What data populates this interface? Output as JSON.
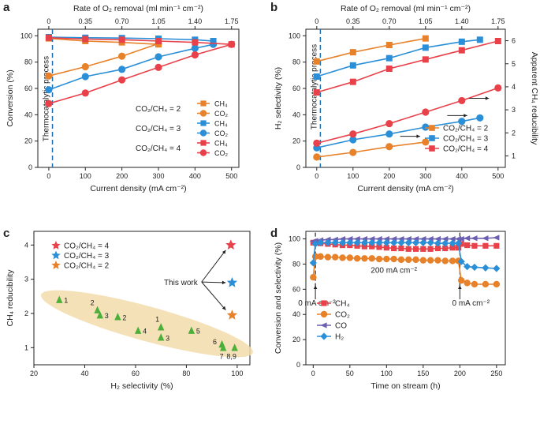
{
  "chart_data": [
    {
      "panel": "a",
      "type": "line",
      "title": "",
      "xlabel": "Current density (mA cm⁻²)",
      "ylabel": "Conversion (%)",
      "top_xlabel": "Rate of O₂ removal (ml min⁻¹ cm⁻²)",
      "x_ticks": [
        "0",
        "100",
        "200",
        "300",
        "400",
        "500"
      ],
      "top_ticks": [
        "0",
        "0.35",
        "0.70",
        "1.05",
        "1.40",
        "1.75"
      ],
      "y_ticks": [
        "0",
        "20",
        "40",
        "60",
        "80",
        "100"
      ],
      "xlim": [
        -30,
        520
      ],
      "ylim": [
        0,
        105
      ],
      "annotation": "Thermocatalytic process",
      "legend_groups": [
        "CO₂/CH₄ = 2",
        "CO₂/CH₄ = 3",
        "CO₂/CH₄ = 4"
      ],
      "series": [
        {
          "name": "CH₄",
          "group": "CO₂/CH₄ = 2",
          "color": "#e8822a",
          "marker": "square",
          "x": [
            0,
            100,
            200,
            300
          ],
          "values": [
            98,
            96,
            95,
            93.5
          ]
        },
        {
          "name": "CO₂",
          "group": "CO₂/CH₄ = 2",
          "color": "#e8822a",
          "marker": "circle",
          "x": [
            0,
            100,
            200,
            300
          ],
          "values": [
            69.5,
            76.5,
            84.5,
            94
          ]
        },
        {
          "name": "CH₄",
          "group": "CO₂/CH₄ = 3",
          "color": "#2b8fd8",
          "marker": "square",
          "x": [
            0,
            100,
            200,
            300,
            400,
            450
          ],
          "values": [
            99,
            98.5,
            98.3,
            97.8,
            97,
            96
          ]
        },
        {
          "name": "CO₂",
          "group": "CO₂/CH₄ = 3",
          "color": "#2b8fd8",
          "marker": "circle",
          "x": [
            0,
            100,
            200,
            300,
            400,
            450
          ],
          "values": [
            59,
            69,
            74.5,
            84,
            90.5,
            93.5
          ]
        },
        {
          "name": "CH₄",
          "group": "CO₂/CH₄ = 4",
          "color": "#e8414a",
          "marker": "square",
          "x": [
            0,
            100,
            200,
            300,
            400,
            500
          ],
          "values": [
            98.5,
            97.5,
            97,
            96,
            95,
            93.5
          ]
        },
        {
          "name": "CO₂",
          "group": "CO₂/CH₄ = 4",
          "color": "#e8414a",
          "marker": "circle",
          "x": [
            0,
            100,
            200,
            300,
            400,
            500
          ],
          "values": [
            48.5,
            56.5,
            66.5,
            76,
            85.5,
            93.5
          ]
        }
      ]
    },
    {
      "panel": "b",
      "type": "line",
      "xlabel": "Current density (mA cm⁻²)",
      "ylabel": "H₂ selectivity (%)",
      "ylabel_right": "Apparent CH₄ reducibility",
      "top_xlabel": "Rate of O₂ removal (ml min⁻¹ cm⁻²)",
      "x_ticks": [
        "0",
        "100",
        "200",
        "300",
        "400",
        "500"
      ],
      "top_ticks": [
        "0",
        "0.35",
        "0.70",
        "1.05",
        "1.40",
        "1.75"
      ],
      "y_ticks": [
        "0",
        "20",
        "40",
        "60",
        "80",
        "100"
      ],
      "y2_ticks": [
        "1",
        "2",
        "3",
        "4",
        "5",
        "6"
      ],
      "xlim": [
        -30,
        520
      ],
      "ylim": [
        0,
        105
      ],
      "y2lim": [
        0.5,
        6.5
      ],
      "annotation": "Thermocatalytic process",
      "legend": [
        "CO₂/CH₄ = 2",
        "CO₂/CH₄ = 3",
        "CO₂/CH₄ = 4"
      ],
      "series": [
        {
          "name": "H₂ selectivity",
          "group": "CO₂/CH₄ = 2",
          "color": "#e8822a",
          "marker": "square",
          "axis": "left",
          "x": [
            0,
            100,
            200,
            300
          ],
          "values": [
            80.5,
            87.5,
            93,
            98
          ]
        },
        {
          "name": "H₂ selectivity",
          "group": "CO₂/CH₄ = 3",
          "color": "#2b8fd8",
          "marker": "square",
          "axis": "left",
          "x": [
            0,
            100,
            200,
            300,
            400,
            450
          ],
          "values": [
            69,
            77.5,
            83,
            91,
            95.5,
            97
          ]
        },
        {
          "name": "H₂ selectivity",
          "group": "CO₂/CH₄ = 4",
          "color": "#e8414a",
          "marker": "square",
          "axis": "left",
          "x": [
            0,
            100,
            200,
            300,
            400,
            500
          ],
          "values": [
            57,
            65,
            75,
            82,
            89,
            96
          ]
        },
        {
          "name": "Apparent CH₄ reducibility",
          "group": "CO₂/CH₄ = 2",
          "color": "#e8822a",
          "marker": "circle",
          "axis": "right",
          "x": [
            0,
            100,
            200,
            300
          ],
          "values": [
            0.95,
            1.15,
            1.4,
            1.6
          ]
        },
        {
          "name": "Apparent CH₄ reducibility",
          "group": "CO₂/CH₄ = 3",
          "color": "#2b8fd8",
          "marker": "circle",
          "axis": "right",
          "x": [
            0,
            100,
            200,
            300,
            400,
            450
          ],
          "values": [
            1.35,
            1.7,
            1.95,
            2.25,
            2.5,
            2.65
          ]
        },
        {
          "name": "Apparent CH₄ reducibility",
          "group": "CO₂/CH₄ = 4",
          "color": "#e8414a",
          "marker": "circle",
          "axis": "right",
          "x": [
            0,
            100,
            200,
            300,
            400,
            500
          ],
          "values": [
            1.55,
            1.95,
            2.4,
            2.9,
            3.4,
            3.95
          ]
        }
      ]
    },
    {
      "panel": "c",
      "type": "scatter",
      "xlabel": "H₂ selectivity (%)",
      "ylabel": "CH₄ reducibility",
      "x_ticks": [
        "20",
        "40",
        "60",
        "80",
        "100"
      ],
      "y_ticks": [
        "1",
        "2",
        "3",
        "4"
      ],
      "xlim": [
        20,
        105
      ],
      "ylim": [
        0.5,
        4.4
      ],
      "this_work_label": "This work",
      "this_work": [
        {
          "name": "CO₂/CH₄ = 4",
          "color": "#e8414a",
          "x": 97.5,
          "y": 4.0
        },
        {
          "name": "CO₂/CH₄ = 3",
          "color": "#2b8fd8",
          "x": 98.0,
          "y": 2.9
        },
        {
          "name": "CO₂/CH₄ = 2",
          "color": "#e8822a",
          "x": 98.0,
          "y": 1.95
        }
      ],
      "literature_color": "#4caf3a",
      "literature": [
        {
          "label": "1",
          "x": 30,
          "y": 2.4
        },
        {
          "label": "2",
          "x": 45,
          "y": 2.1
        },
        {
          "label": "3",
          "x": 46,
          "y": 1.95
        },
        {
          "label": "2",
          "x": 53,
          "y": 1.9
        },
        {
          "label": "4",
          "x": 61,
          "y": 1.5
        },
        {
          "label": "1",
          "x": 70,
          "y": 1.6
        },
        {
          "label": "3",
          "x": 70,
          "y": 1.3
        },
        {
          "label": "5",
          "x": 82,
          "y": 1.5
        },
        {
          "label": "6",
          "x": 94,
          "y": 1.1
        },
        {
          "label": "7",
          "x": 94.5,
          "y": 1.0
        },
        {
          "label": "8,9",
          "x": 99,
          "y": 1.0
        }
      ]
    },
    {
      "panel": "d",
      "type": "line",
      "xlabel": "Time on stream (h)",
      "ylabel": "Conversion and selectivity (%)",
      "x_ticks": [
        "0",
        "50",
        "100",
        "150",
        "200",
        "250"
      ],
      "y_ticks": [
        "0",
        "20",
        "40",
        "60",
        "80",
        "100"
      ],
      "xlim": [
        -10,
        262
      ],
      "ylim": [
        0,
        106
      ],
      "annotations": {
        "start": "0 mA cm⁻²",
        "middle": "200 mA cm⁻²",
        "end": "0 mA cm⁻²"
      },
      "series": [
        {
          "name": "CH₄",
          "color": "#e8414a",
          "marker": "square",
          "x": [
            0,
            3,
            10,
            20,
            30,
            40,
            50,
            60,
            70,
            80,
            90,
            100,
            110,
            120,
            130,
            140,
            150,
            160,
            170,
            180,
            190,
            198,
            202,
            210,
            220,
            235,
            250
          ],
          "values": [
            97,
            97,
            96.5,
            96,
            95.5,
            95,
            95,
            94.5,
            94,
            94,
            93.5,
            93,
            92.5,
            92.5,
            92,
            92,
            92,
            92,
            92.5,
            92.5,
            93,
            93,
            96,
            95,
            94.5,
            94.5,
            94.5
          ]
        },
        {
          "name": "CO₂",
          "color": "#e8822a",
          "marker": "circle",
          "x": [
            0,
            3,
            10,
            20,
            30,
            40,
            50,
            60,
            70,
            80,
            90,
            100,
            110,
            120,
            130,
            140,
            150,
            160,
            170,
            180,
            190,
            198,
            202,
            210,
            220,
            235,
            250
          ],
          "values": [
            69.5,
            86,
            86,
            85.5,
            85.5,
            85,
            85,
            84.5,
            84.5,
            84.5,
            84,
            84,
            84,
            83.5,
            83.5,
            83.5,
            83,
            83,
            83,
            82.5,
            82.5,
            82.5,
            67,
            65,
            64,
            64,
            64
          ]
        },
        {
          "name": "CO",
          "color": "#6b5fb0",
          "marker": "triangle-left",
          "x": [
            0,
            3,
            10,
            20,
            30,
            40,
            50,
            60,
            70,
            80,
            90,
            100,
            110,
            120,
            130,
            140,
            150,
            160,
            170,
            180,
            190,
            198,
            202,
            210,
            220,
            235,
            250
          ],
          "values": [
            98,
            98.5,
            99,
            99.5,
            99.5,
            100,
            100,
            100,
            100,
            100,
            100,
            100,
            100,
            100,
            100,
            100,
            100,
            100,
            100,
            100,
            100,
            100,
            100,
            100.5,
            100.5,
            100.5,
            101
          ]
        },
        {
          "name": "H₂",
          "color": "#2b8fd8",
          "marker": "diamond",
          "x": [
            0,
            3,
            10,
            20,
            30,
            40,
            50,
            60,
            70,
            80,
            90,
            100,
            110,
            120,
            130,
            140,
            150,
            160,
            170,
            180,
            190,
            198,
            202,
            210,
            220,
            235,
            250
          ],
          "values": [
            81,
            96,
            97,
            97,
            97,
            97,
            97,
            97,
            97,
            97,
            97,
            97,
            97,
            97,
            97,
            97,
            97,
            97,
            96.5,
            96.5,
            96.5,
            96.5,
            82,
            78,
            77.5,
            77,
            76.5
          ]
        }
      ]
    }
  ]
}
